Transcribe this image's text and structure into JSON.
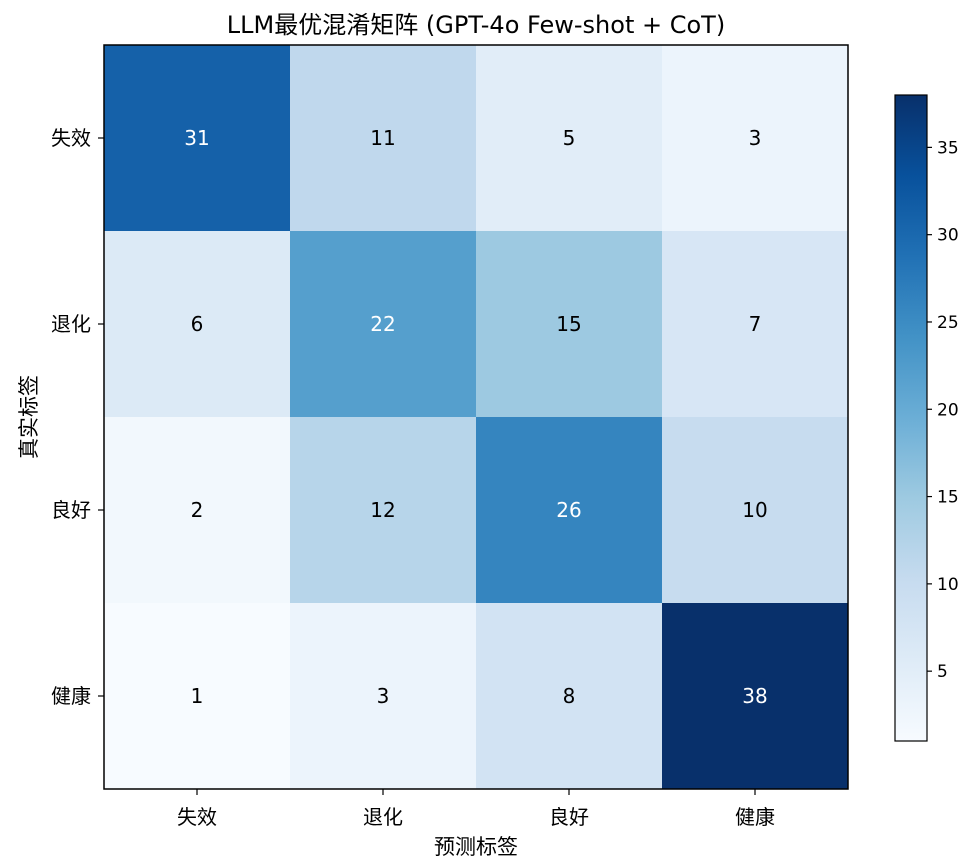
{
  "chart_data": {
    "type": "heatmap",
    "title": "LLM最优混淆矩阵 (GPT-4o Few-shot + CoT)",
    "xlabel": "预测标签",
    "ylabel": "真实标签",
    "x_categories": [
      "失效",
      "退化",
      "良好",
      "健康"
    ],
    "y_categories": [
      "失效",
      "退化",
      "良好",
      "健康"
    ],
    "values": [
      [
        31,
        11,
        5,
        3
      ],
      [
        6,
        22,
        15,
        7
      ],
      [
        2,
        12,
        26,
        10
      ],
      [
        1,
        3,
        8,
        38
      ]
    ],
    "colormap": "Blues",
    "colorbar": {
      "range": [
        1,
        38
      ],
      "ticks": [
        5,
        10,
        15,
        20,
        25,
        30,
        35
      ],
      "tick_labels": [
        "5",
        "10",
        "15",
        "20",
        "25",
        "30",
        "35"
      ]
    }
  }
}
